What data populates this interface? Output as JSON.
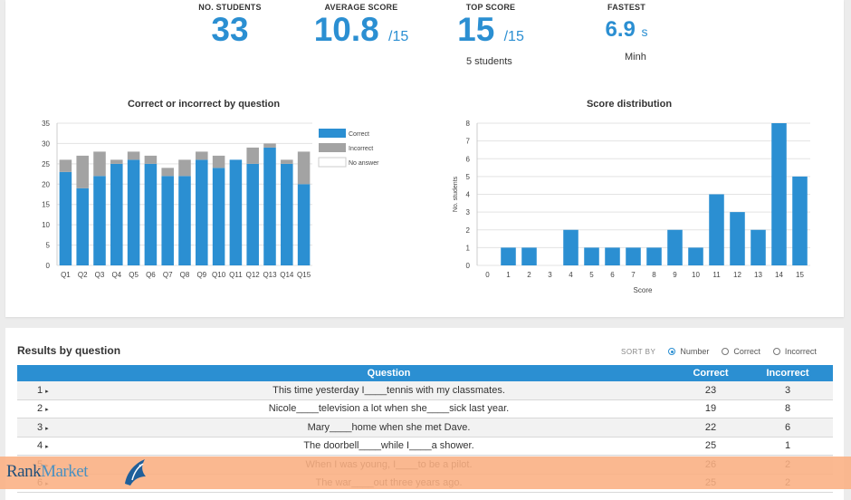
{
  "stats": [
    {
      "label": "NO. STUDENTS",
      "value": "33",
      "suffix": "",
      "sub": ""
    },
    {
      "label": "AVERAGE SCORE",
      "value": "10.8",
      "suffix": "/15",
      "sub": ""
    },
    {
      "label": "TOP SCORE",
      "value": "15",
      "suffix": "/15",
      "sub": "5 students"
    },
    {
      "label": "FASTEST",
      "value": "6.9",
      "suffix": "s",
      "sub": "Minh"
    }
  ],
  "chart_data": [
    {
      "type": "bar",
      "title": "Correct or incorrect by question",
      "categories": [
        "Q1",
        "Q2",
        "Q3",
        "Q4",
        "Q5",
        "Q6",
        "Q7",
        "Q8",
        "Q9",
        "Q10",
        "Q11",
        "Q12",
        "Q13",
        "Q14",
        "Q15"
      ],
      "series": [
        {
          "name": "Correct",
          "color": "#2b8fd2",
          "values": [
            23,
            19,
            22,
            25,
            26,
            25,
            22,
            22,
            26,
            24,
            26,
            25,
            29,
            25,
            20
          ]
        },
        {
          "name": "Incorrect",
          "color": "#a3a3a3",
          "values": [
            3,
            8,
            6,
            1,
            2,
            2,
            2,
            4,
            2,
            3,
            0,
            4,
            1,
            1,
            8
          ]
        },
        {
          "name": "No answer",
          "color": "#ffffff",
          "values": [
            0,
            0,
            0,
            0,
            0,
            0,
            0,
            0,
            0,
            0,
            0,
            0,
            0,
            0,
            0
          ]
        }
      ],
      "stacked": true,
      "ylim": [
        0,
        35
      ],
      "yticks": [
        0,
        5,
        10,
        15,
        20,
        25,
        30,
        35
      ],
      "legend": "right",
      "grid": true
    },
    {
      "type": "bar",
      "title": "Score distribution",
      "categories": [
        "0",
        "1",
        "2",
        "3",
        "4",
        "5",
        "6",
        "7",
        "8",
        "9",
        "10",
        "11",
        "12",
        "13",
        "14",
        "15"
      ],
      "values": [
        0,
        1,
        1,
        0,
        2,
        1,
        1,
        1,
        1,
        2,
        1,
        4,
        3,
        2,
        8,
        5
      ],
      "xlabel": "Score",
      "ylabel": "No. students",
      "ylim": [
        0,
        8
      ],
      "yticks": [
        0,
        1,
        2,
        3,
        4,
        5,
        6,
        7,
        8
      ],
      "grid": true,
      "color": "#2b8fd2"
    }
  ],
  "results": {
    "title": "Results by question",
    "sort_label": "SORT BY",
    "sort_options": [
      "Number",
      "Correct",
      "Incorrect"
    ],
    "sort_selected": "Number",
    "headers": {
      "question": "Question",
      "correct": "Correct",
      "incorrect": "Incorrect"
    },
    "rows": [
      {
        "num": "1",
        "caret": "▸",
        "question": "This time yesterday I____tennis with my classmates.",
        "correct": "23",
        "incorrect": "3"
      },
      {
        "num": "2",
        "caret": "▸",
        "question": "Nicole____television a lot when she____sick last year.",
        "correct": "19",
        "incorrect": "8"
      },
      {
        "num": "3",
        "caret": "▸",
        "question": "Mary____home when she met Dave.",
        "correct": "22",
        "incorrect": "6"
      },
      {
        "num": "4",
        "caret": "▸",
        "question": "The doorbell____while I____a shower.",
        "correct": "25",
        "incorrect": "1"
      },
      {
        "num": "5",
        "caret": "▸",
        "question": "When I was young, I____to be a pilot.",
        "correct": "26",
        "incorrect": "2"
      },
      {
        "num": "6",
        "caret": "▸",
        "question": "The war____out three years ago.",
        "correct": "25",
        "incorrect": "2"
      }
    ]
  },
  "brand": {
    "part1": "Rank",
    "part2": "Market"
  }
}
